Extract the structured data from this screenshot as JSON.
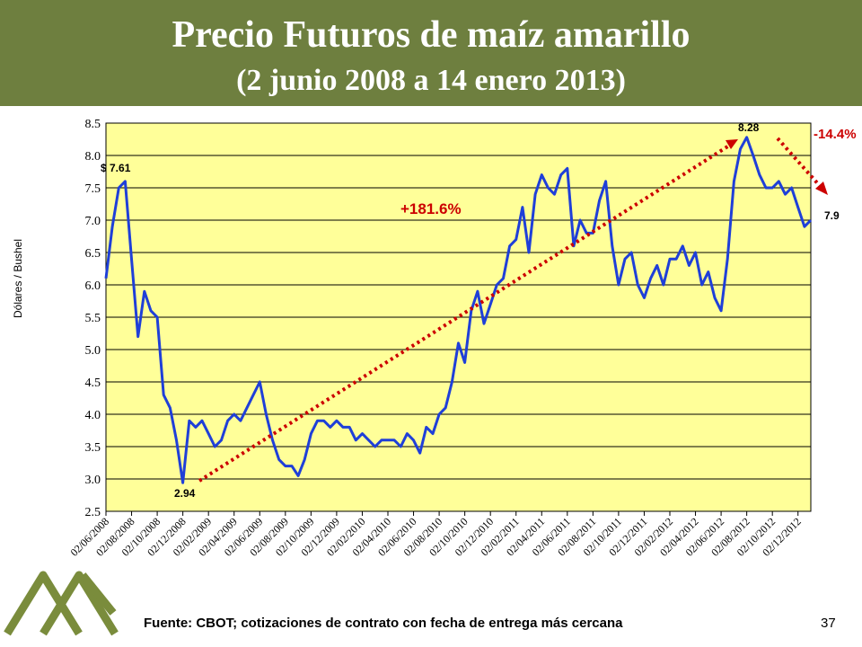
{
  "chart_data": {
    "type": "line",
    "title": "Precio Futuros de maíz amarillo",
    "subtitle": "(2 junio 2008 a 14 enero 2013)",
    "y_label": "Dólares / Bushel",
    "source": "Fuente: CBOT; cotizaciones de contrato con fecha de entrega más cercana",
    "page_number": "37",
    "annotations": [
      "$ 7.61",
      "8.28",
      "2.94",
      "7.9",
      "+181.6%",
      "-14.4%"
    ],
    "color": "#1f3fd8",
    "grid": true,
    "categories": [
      "02/06/2008",
      null,
      null,
      null,
      "02/08/2008",
      null,
      null,
      null,
      "02/10/2008",
      null,
      null,
      null,
      "02/12/2008",
      null,
      null,
      null,
      "02/02/2009",
      null,
      null,
      null,
      "02/04/2009",
      null,
      null,
      null,
      "02/06/2009",
      null,
      null,
      null,
      "02/08/2009",
      null,
      null,
      null,
      "02/10/2009",
      null,
      null,
      null,
      "02/12/2009",
      null,
      null,
      null,
      "02/02/2010",
      null,
      null,
      null,
      "02/04/2010",
      null,
      null,
      null,
      "02/06/2010",
      null,
      null,
      null,
      "02/08/2010",
      null,
      null,
      null,
      "02/10/2010",
      null,
      null,
      null,
      "02/12/2010",
      null,
      null,
      null,
      "02/02/2011",
      null,
      null,
      null,
      "02/04/2011",
      null,
      null,
      null,
      "02/06/2011",
      null,
      null,
      null,
      "02/08/2011",
      null,
      null,
      null,
      "02/10/2011",
      null,
      null,
      null,
      "02/12/2011",
      null,
      null,
      null,
      "02/02/2012",
      null,
      null,
      null,
      "02/04/2012",
      null,
      null,
      null,
      "02/06/2012",
      null,
      null,
      null,
      "02/08/2012",
      null,
      null,
      null,
      "02/10/2012",
      null,
      null,
      null,
      "02/12/2012",
      null,
      null
    ],
    "values": [
      6.1,
      6.9,
      7.5,
      7.6,
      6.4,
      5.2,
      5.9,
      5.6,
      5.5,
      4.3,
      4.1,
      3.6,
      2.94,
      3.9,
      3.8,
      3.9,
      3.7,
      3.5,
      3.6,
      3.9,
      4.0,
      3.9,
      4.1,
      4.3,
      4.5,
      4.0,
      3.6,
      3.3,
      3.2,
      3.2,
      3.05,
      3.3,
      3.7,
      3.9,
      3.9,
      3.8,
      3.9,
      3.8,
      3.8,
      3.6,
      3.7,
      3.6,
      3.5,
      3.6,
      3.6,
      3.6,
      3.5,
      3.7,
      3.6,
      3.4,
      3.8,
      3.7,
      4.0,
      4.1,
      4.5,
      5.1,
      4.8,
      5.6,
      5.9,
      5.4,
      5.7,
      6.0,
      6.1,
      6.6,
      6.7,
      7.2,
      6.5,
      7.4,
      7.7,
      7.5,
      7.4,
      7.7,
      7.8,
      6.6,
      7.0,
      6.8,
      6.8,
      7.3,
      7.6,
      6.6,
      6.0,
      6.4,
      6.5,
      6.0,
      5.8,
      6.1,
      6.3,
      6.0,
      6.4,
      6.4,
      6.6,
      6.3,
      6.5,
      6.0,
      6.2,
      5.8,
      5.6,
      6.4,
      7.6,
      8.1,
      8.28,
      8.0,
      7.7,
      7.5,
      7.5,
      7.6,
      7.4,
      7.5,
      7.2,
      6.9,
      7.0
    ],
    "ylim": [
      2.5,
      8.5
    ],
    "yticks": [
      2.5,
      {
        "value": 3,
        "label": "3.0"
      },
      3.5,
      {
        "value": 4,
        "label": "4.0"
      },
      4.5,
      {
        "value": 5,
        "label": "5.0"
      },
      5.5,
      {
        "value": 6,
        "label": "6.0"
      },
      6.5,
      {
        "value": 7,
        "label": "7.0"
      },
      7.5,
      {
        "value": 8,
        "label": "8.0"
      },
      8.5
    ]
  }
}
